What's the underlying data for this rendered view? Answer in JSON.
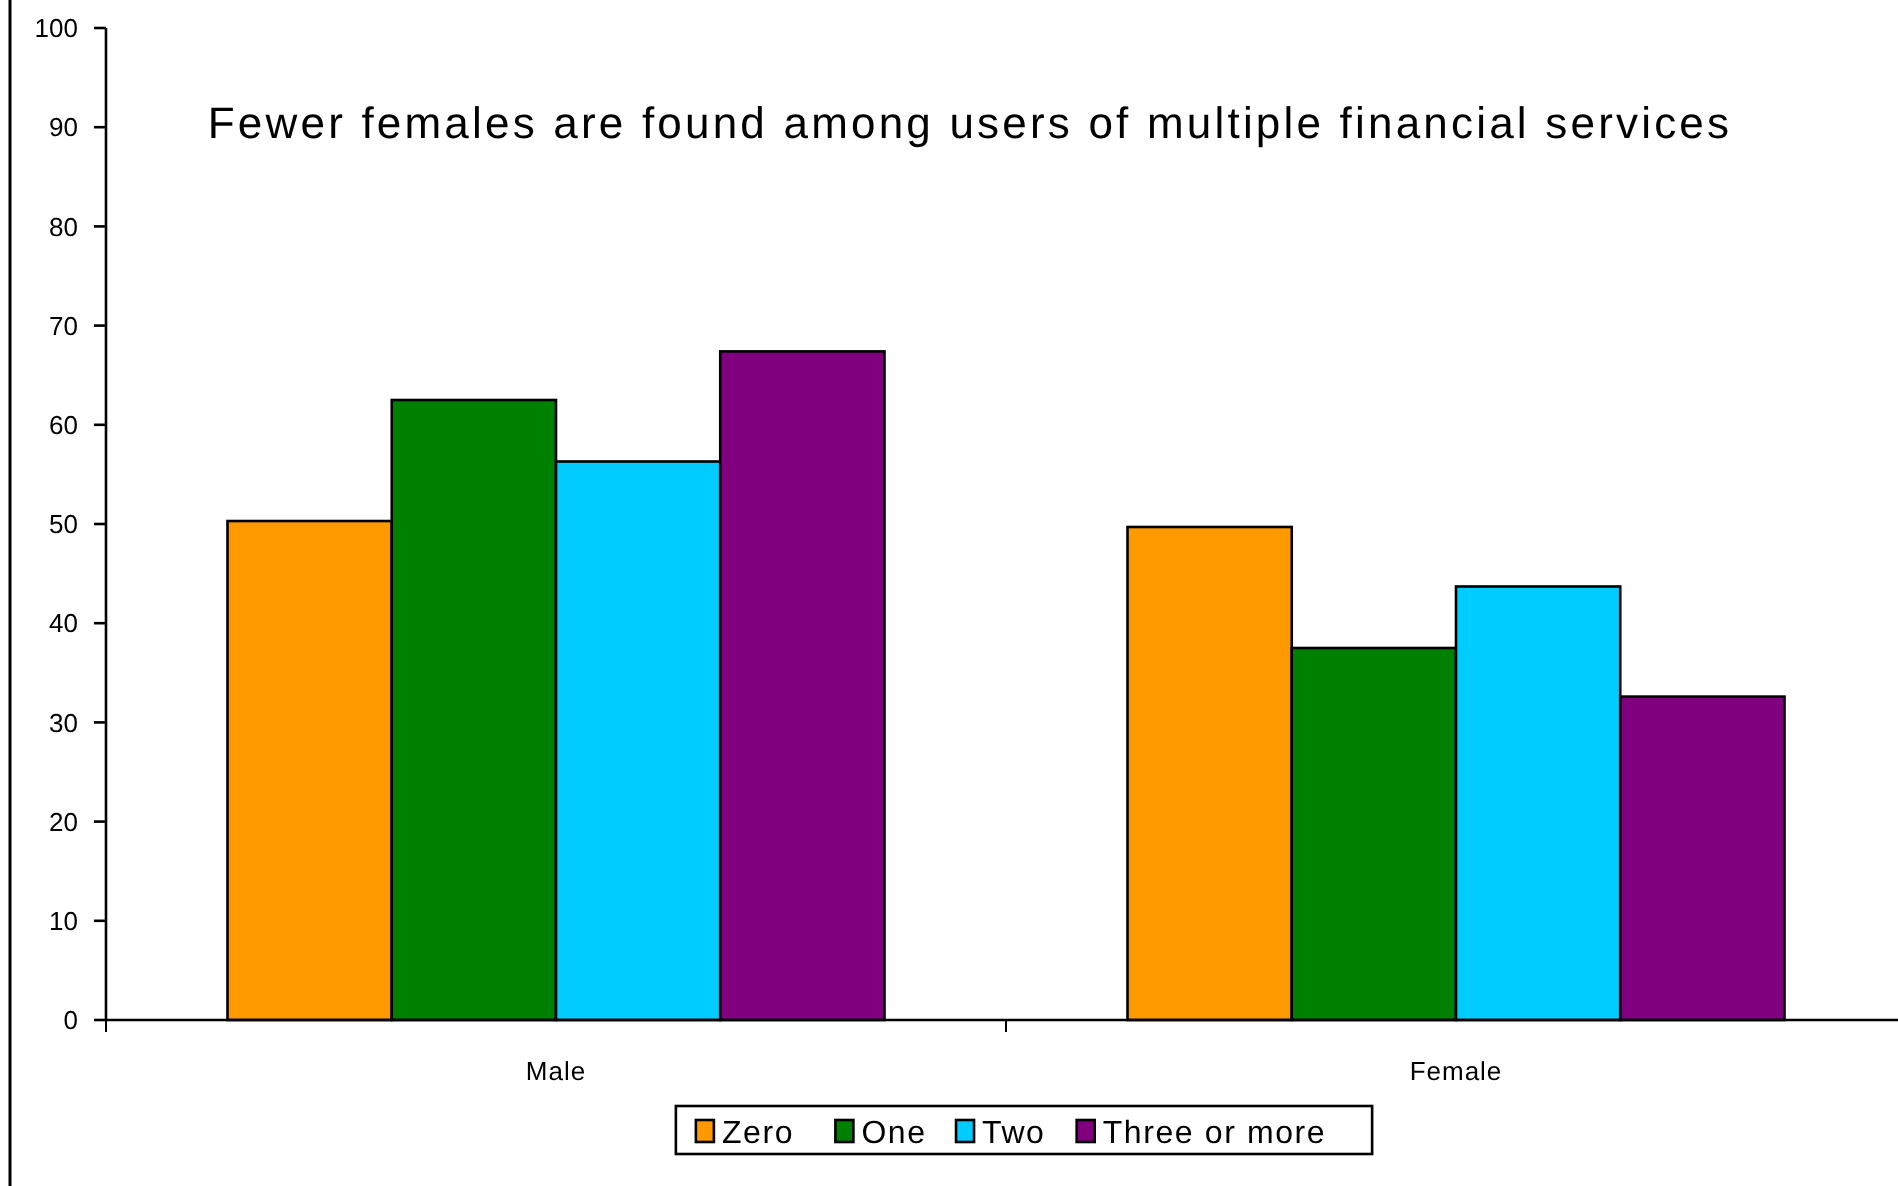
{
  "chart_data": {
    "type": "bar",
    "title": "Fewer females are found among users of multiple financial services",
    "categories": [
      "Male",
      "Female"
    ],
    "series": [
      {
        "name": "Zero",
        "color": "#ff9900",
        "values": [
          50.3,
          49.7
        ]
      },
      {
        "name": "One",
        "color": "#008000",
        "values": [
          62.5,
          37.5
        ]
      },
      {
        "name": "Two",
        "color": "#00ccff",
        "values": [
          56.3,
          43.7
        ]
      },
      {
        "name": "Three or more",
        "color": "#800080",
        "values": [
          67.4,
          32.6
        ]
      }
    ],
    "ylim": [
      0,
      100
    ],
    "yticks": [
      0,
      10,
      20,
      30,
      40,
      50,
      60,
      70,
      80,
      90,
      100
    ],
    "grid": false,
    "legend": "bottom"
  }
}
